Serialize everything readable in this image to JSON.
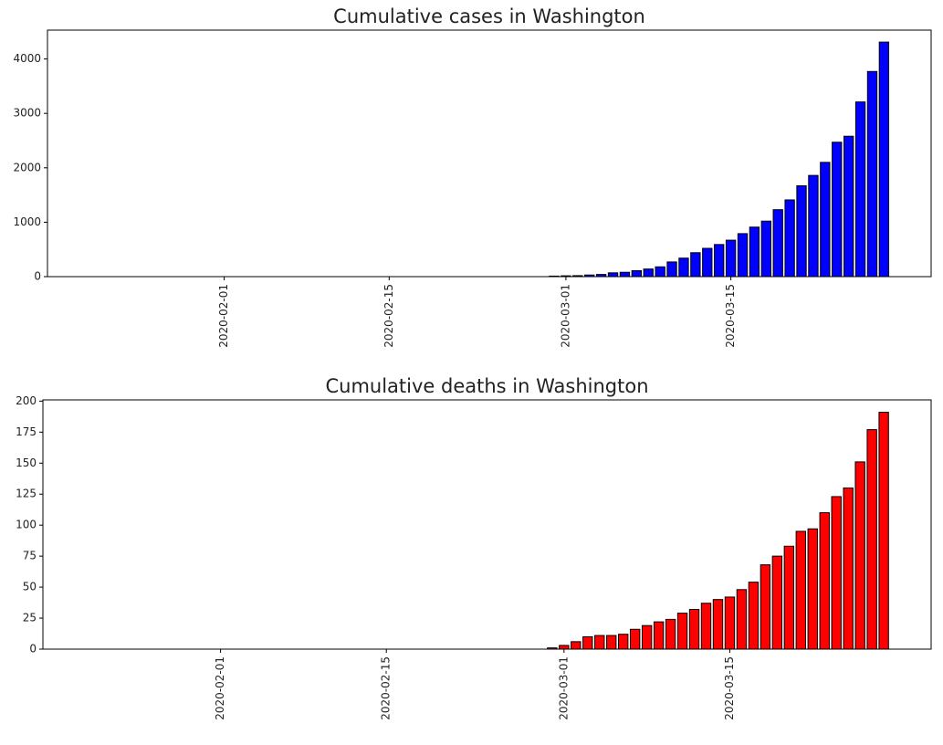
{
  "chart_data": [
    {
      "type": "bar",
      "title": "Cumulative cases in Washington",
      "color": "#0000ff",
      "edgecolor": "#000000",
      "x": [
        "2020-02-29",
        "2020-03-01",
        "2020-03-02",
        "2020-03-03",
        "2020-03-04",
        "2020-03-05",
        "2020-03-06",
        "2020-03-07",
        "2020-03-08",
        "2020-03-09",
        "2020-03-10",
        "2020-03-11",
        "2020-03-12",
        "2020-03-13",
        "2020-03-14",
        "2020-03-15",
        "2020-03-16",
        "2020-03-17",
        "2020-03-18",
        "2020-03-19",
        "2020-03-20",
        "2020-03-21",
        "2020-03-22",
        "2020-03-23",
        "2020-03-24",
        "2020-03-25",
        "2020-03-26",
        "2020-03-27",
        "2020-03-28"
      ],
      "values": [
        10,
        15,
        18,
        30,
        40,
        70,
        80,
        110,
        140,
        180,
        270,
        340,
        440,
        520,
        590,
        670,
        790,
        910,
        1020,
        1230,
        1410,
        1670,
        1860,
        2100,
        2470,
        2580,
        3210,
        3770,
        4310
      ],
      "xlim": [
        "2020-01-17",
        "2020-04-01"
      ],
      "xticks": [
        "2020-02-01",
        "2020-02-15",
        "2020-03-01",
        "2020-03-15"
      ],
      "ylim": [
        0,
        4530
      ],
      "yticks": [
        0,
        1000,
        2000,
        3000,
        4000
      ]
    },
    {
      "type": "bar",
      "title": "Cumulative deaths in Washington",
      "color": "#ff0000",
      "edgecolor": "#000000",
      "x": [
        "2020-02-29",
        "2020-03-01",
        "2020-03-02",
        "2020-03-03",
        "2020-03-04",
        "2020-03-05",
        "2020-03-06",
        "2020-03-07",
        "2020-03-08",
        "2020-03-09",
        "2020-03-10",
        "2020-03-11",
        "2020-03-12",
        "2020-03-13",
        "2020-03-14",
        "2020-03-15",
        "2020-03-16",
        "2020-03-17",
        "2020-03-18",
        "2020-03-19",
        "2020-03-20",
        "2020-03-21",
        "2020-03-22",
        "2020-03-23",
        "2020-03-24",
        "2020-03-25",
        "2020-03-26",
        "2020-03-27",
        "2020-03-28"
      ],
      "values": [
        1,
        3,
        6,
        10,
        11,
        11,
        12,
        16,
        19,
        22,
        24,
        29,
        32,
        37,
        40,
        42,
        48,
        54,
        68,
        75,
        83,
        95,
        97,
        110,
        123,
        130,
        151,
        177,
        191
      ],
      "xlim": [
        "2020-01-17",
        "2020-04-01"
      ],
      "xticks": [
        "2020-02-01",
        "2020-02-15",
        "2020-03-01",
        "2020-03-15"
      ],
      "ylim": [
        0,
        201
      ],
      "yticks": [
        0,
        25,
        50,
        75,
        100,
        125,
        150,
        175,
        200
      ]
    }
  ]
}
